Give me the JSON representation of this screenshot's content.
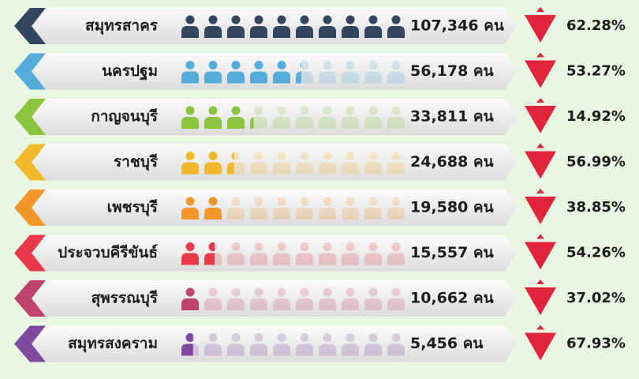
{
  "chart_data": {
    "type": "pictograph",
    "categories": [
      "สมุทรสาคร",
      "นครปฐม",
      "กาญจนบุรี",
      "ราชบุรี",
      "เพชรบุรี",
      "ประจวบคีรีขันธ์",
      "สุพรรณบุรี",
      "สมุทรสงคราม"
    ],
    "values": [
      107346,
      56178,
      33811,
      24688,
      19580,
      15557,
      10662,
      5456
    ],
    "value_labels": [
      "107,346 คน",
      "56,178 คน",
      "33,811 คน",
      "24,688 คน",
      "19,580 คน",
      "15,557 คน",
      "10,662 คน",
      "5,456 คน"
    ],
    "changes": [
      62.28,
      53.27,
      14.92,
      56.99,
      38.85,
      54.26,
      37.02,
      67.93
    ],
    "change_labels": [
      "62.28%",
      "53.27%",
      "14.92%",
      "56.99%",
      "38.85%",
      "54.26%",
      "37.02%",
      "67.93%"
    ],
    "colors": [
      "#34465e",
      "#56acd8",
      "#8cc43f",
      "#f0b82a",
      "#f3972a",
      "#e8384a",
      "#c0436e",
      "#7d4a9d"
    ]
  }
}
